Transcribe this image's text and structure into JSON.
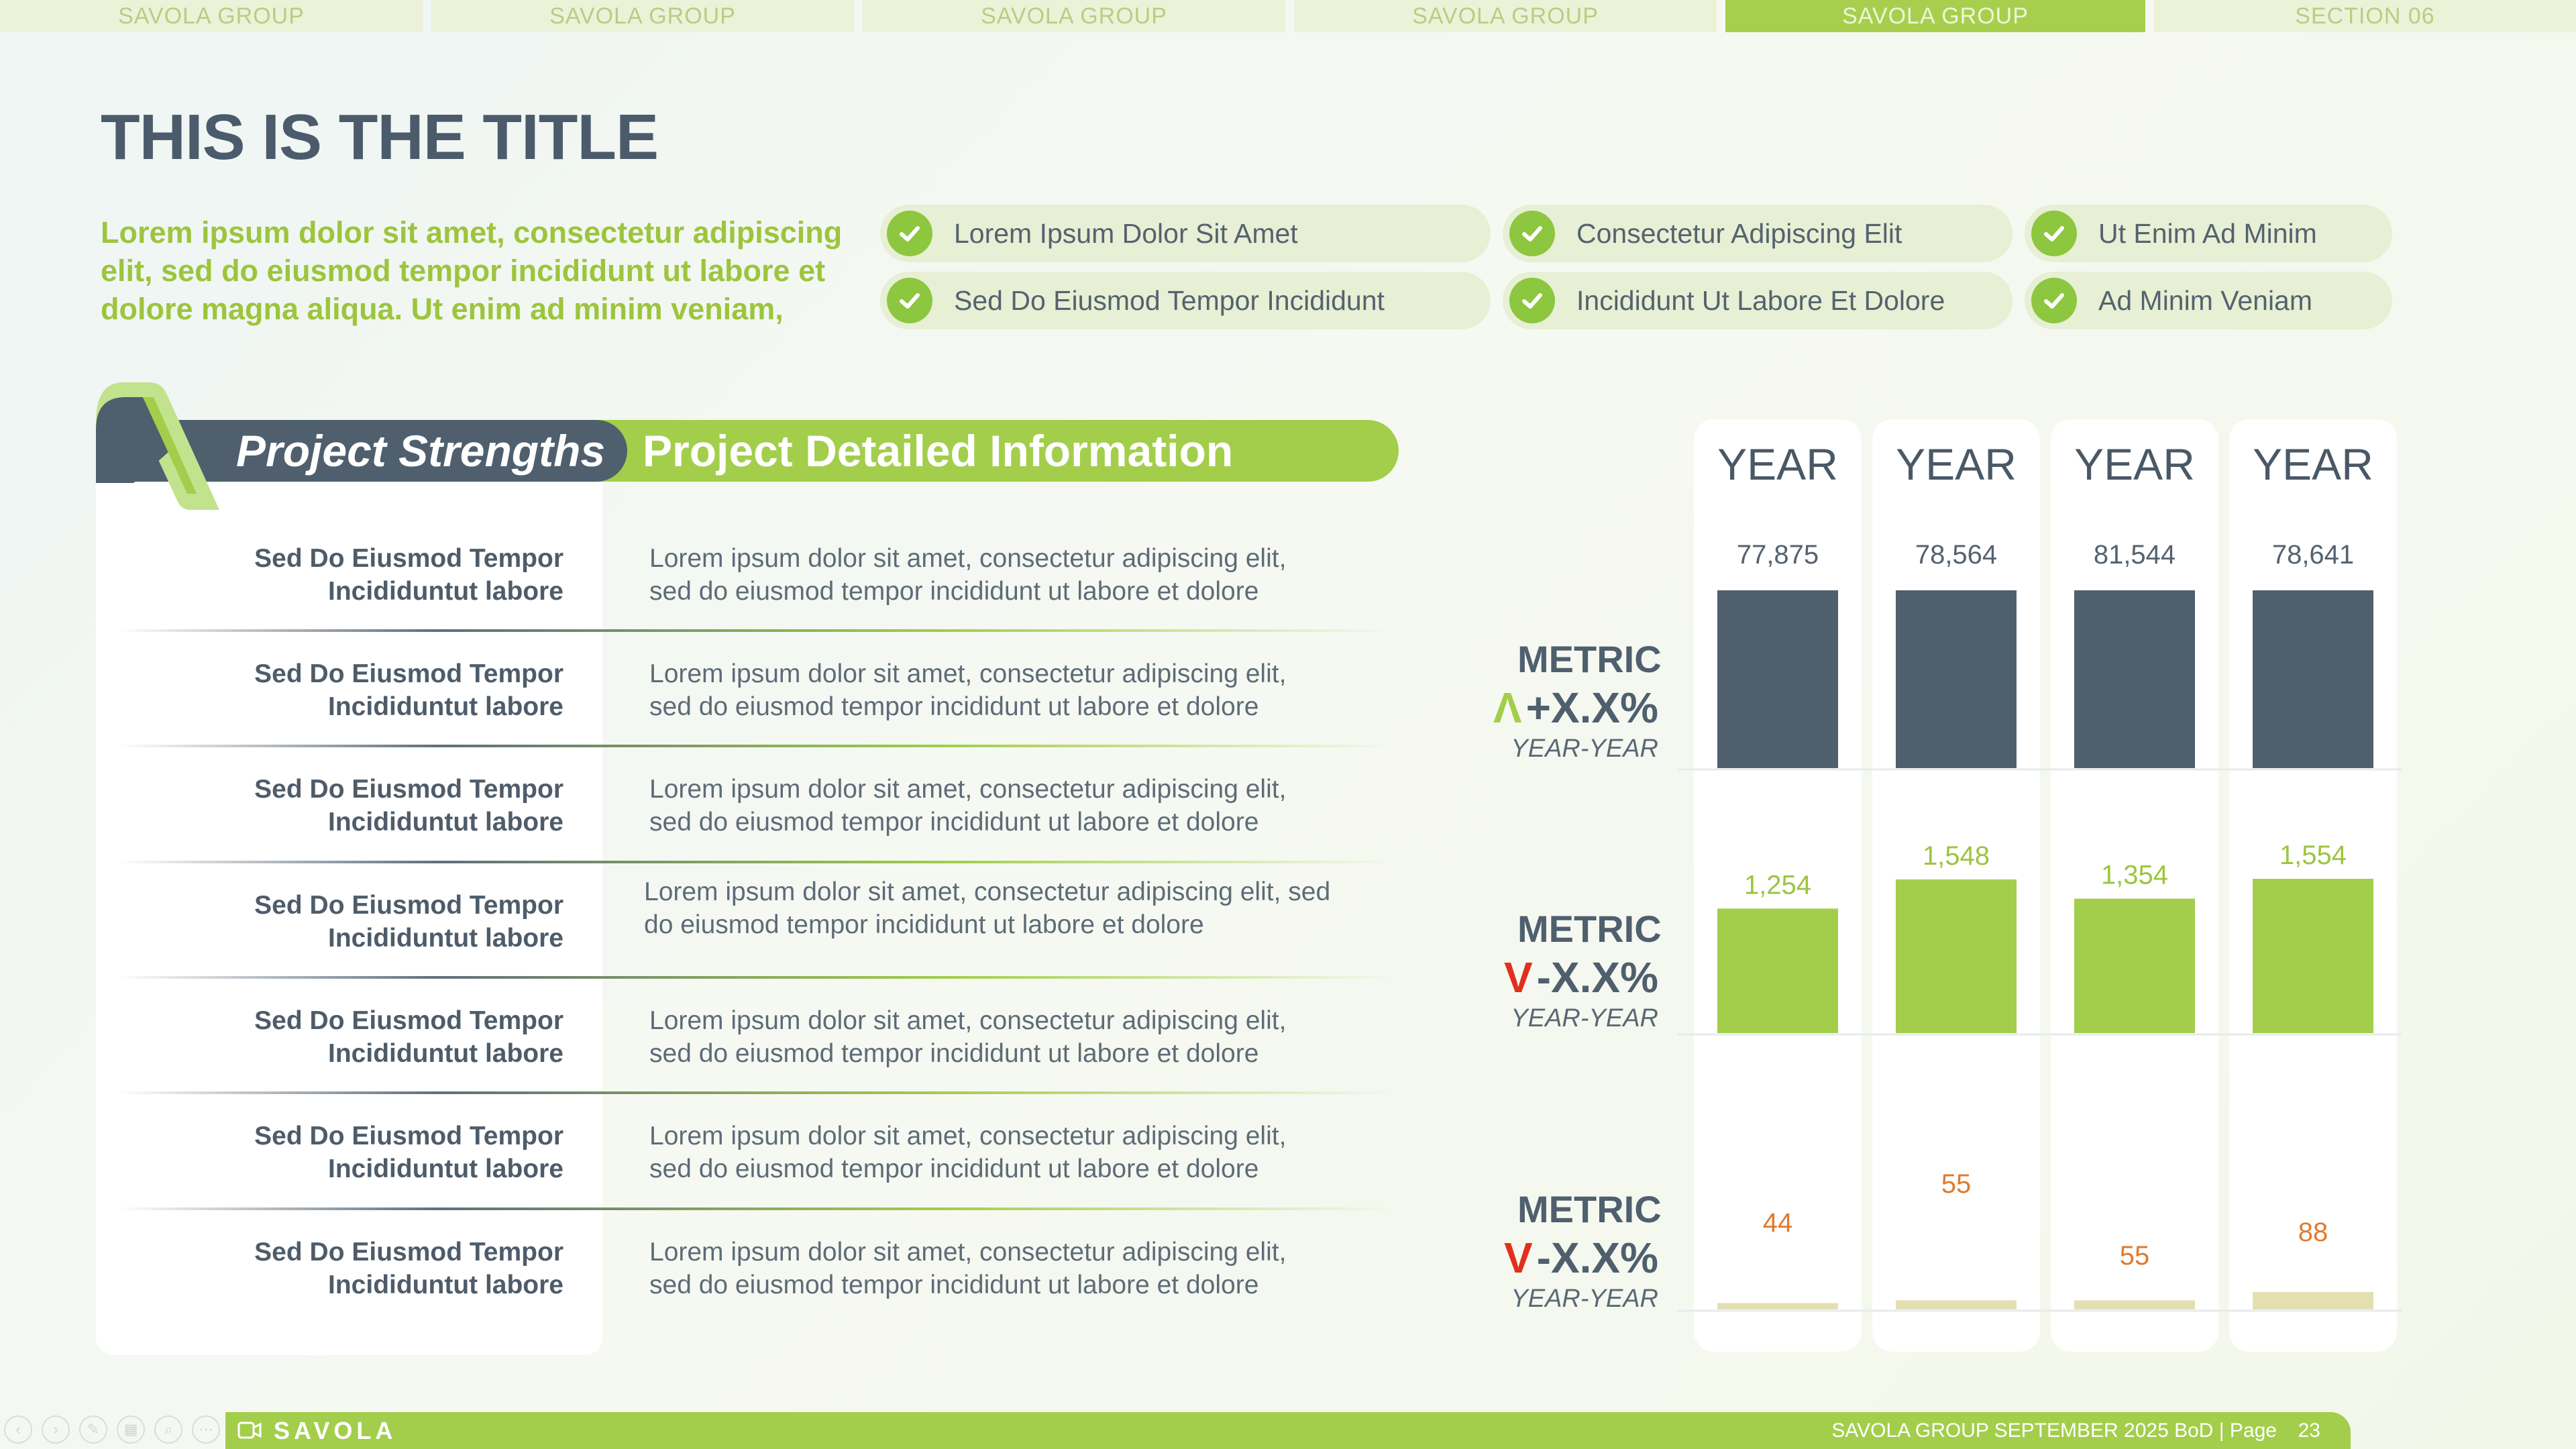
{
  "nav": {
    "tabs": [
      {
        "label": "SAVOLA GROUP",
        "active": false
      },
      {
        "label": "SAVOLA GROUP",
        "active": false
      },
      {
        "label": "SAVOLA GROUP",
        "active": false
      },
      {
        "label": "SAVOLA GROUP",
        "active": false
      },
      {
        "label": "SAVOLA GROUP",
        "active": true
      },
      {
        "label": "SECTION 06",
        "active": false
      }
    ]
  },
  "title": "THIS IS THE TITLE",
  "intro": "Lorem ipsum dolor sit amet, consectetur adipiscing elit, sed do eiusmod tempor incididunt ut labore et dolore magna aliqua. Ut enim ad minim veniam,",
  "checklist": [
    "Lorem Ipsum Dolor Sit Amet",
    "Consectetur Adipiscing Elit",
    "Ut Enim Ad Minim",
    "Sed Do Eiusmod Tempor Incididunt",
    "Incididunt Ut Labore Et Dolore",
    "Ad Minim Veniam"
  ],
  "table": {
    "header_left": "Project Strengths",
    "header_right": "Project Detailed Information",
    "rows": [
      {
        "key_line1": "Sed Do Eiusmod Tempor",
        "key_line2": "Incididuntut labore",
        "val_line1": "Lorem ipsum dolor sit amet, consectetur adipiscing elit,",
        "val_line2": "sed do eiusmod tempor incididunt ut labore et dolore"
      },
      {
        "key_line1": "Sed Do Eiusmod Tempor",
        "key_line2": "Incididuntut labore",
        "val_line1": "Lorem ipsum dolor sit amet, consectetur adipiscing elit,",
        "val_line2": "sed do eiusmod tempor incididunt ut labore et dolore"
      },
      {
        "key_line1": "Sed Do Eiusmod Tempor",
        "key_line2": "Incididuntut labore",
        "val_line1": "Lorem ipsum dolor sit amet, consectetur adipiscing elit,",
        "val_line2": "sed do eiusmod tempor incididunt ut labore et dolore"
      },
      {
        "key_line1": "Sed Do Eiusmod Tempor",
        "key_line2": "Incididuntut labore",
        "val_line1": "Lorem ipsum dolor sit amet, consectetur adipiscing elit, sed",
        "val_line2": "do eiusmod tempor incididunt ut labore et dolore"
      },
      {
        "key_line1": "Sed Do Eiusmod Tempor",
        "key_line2": "Incididuntut labore",
        "val_line1": "Lorem ipsum dolor sit amet, consectetur adipiscing elit,",
        "val_line2": "sed do eiusmod tempor incididunt ut labore et dolore"
      },
      {
        "key_line1": "Sed Do Eiusmod Tempor",
        "key_line2": "Incididuntut labore",
        "val_line1": "Lorem ipsum dolor sit amet, consectetur adipiscing elit,",
        "val_line2": "sed do eiusmod tempor incididunt ut labore et dolore"
      },
      {
        "key_line1": "Sed Do Eiusmod Tempor",
        "key_line2": "Incididuntut labore",
        "val_line1": "Lorem ipsum dolor sit amet, consectetur adipiscing elit,",
        "val_line2": "sed do eiusmod tempor incididunt ut labore et dolore"
      }
    ]
  },
  "metrics": [
    {
      "name": "METRIC",
      "arrow": "Λ",
      "change": "+X.X%",
      "sub": "YEAR-YEAR",
      "direction": "up"
    },
    {
      "name": "METRIC",
      "arrow": "V",
      "change": "-X.X%",
      "sub": "YEAR-YEAR",
      "direction": "down"
    },
    {
      "name": "METRIC",
      "arrow": "V",
      "change": "-X.X%",
      "sub": "YEAR-YEAR",
      "direction": "down"
    }
  ],
  "colors": {
    "accent_green": "#a3ce4b",
    "dark_slate": "#4f5f6e",
    "up_arrow": "#a3ce4b",
    "down_arrow": "#e0301e",
    "metric3_bar": "#e4dfb0",
    "metric3_label": "#e07a2e"
  },
  "chart_data": {
    "type": "bar",
    "categories": [
      "YEAR",
      "YEAR",
      "YEAR",
      "YEAR"
    ],
    "series": [
      {
        "values": [
          77875,
          78564,
          81544,
          78641
        ],
        "labels": [
          "77,875",
          "78,564",
          "81,544",
          "78,641"
        ],
        "color": "#4f5f6e"
      },
      {
        "values": [
          1254,
          1548,
          1354,
          1554
        ],
        "labels": [
          "1,254",
          "1,548",
          "1,354",
          "1,554"
        ],
        "color": "#a3ce4b"
      },
      {
        "values": [
          44,
          55,
          55,
          88
        ],
        "labels": [
          "44",
          "55",
          "55",
          "88"
        ],
        "color": "#e4dfb0"
      }
    ]
  },
  "footer": {
    "brand": "SAVOLA",
    "text": "SAVOLA GROUP SEPTEMBER 2025 BoD  |  Page",
    "page": "23"
  }
}
